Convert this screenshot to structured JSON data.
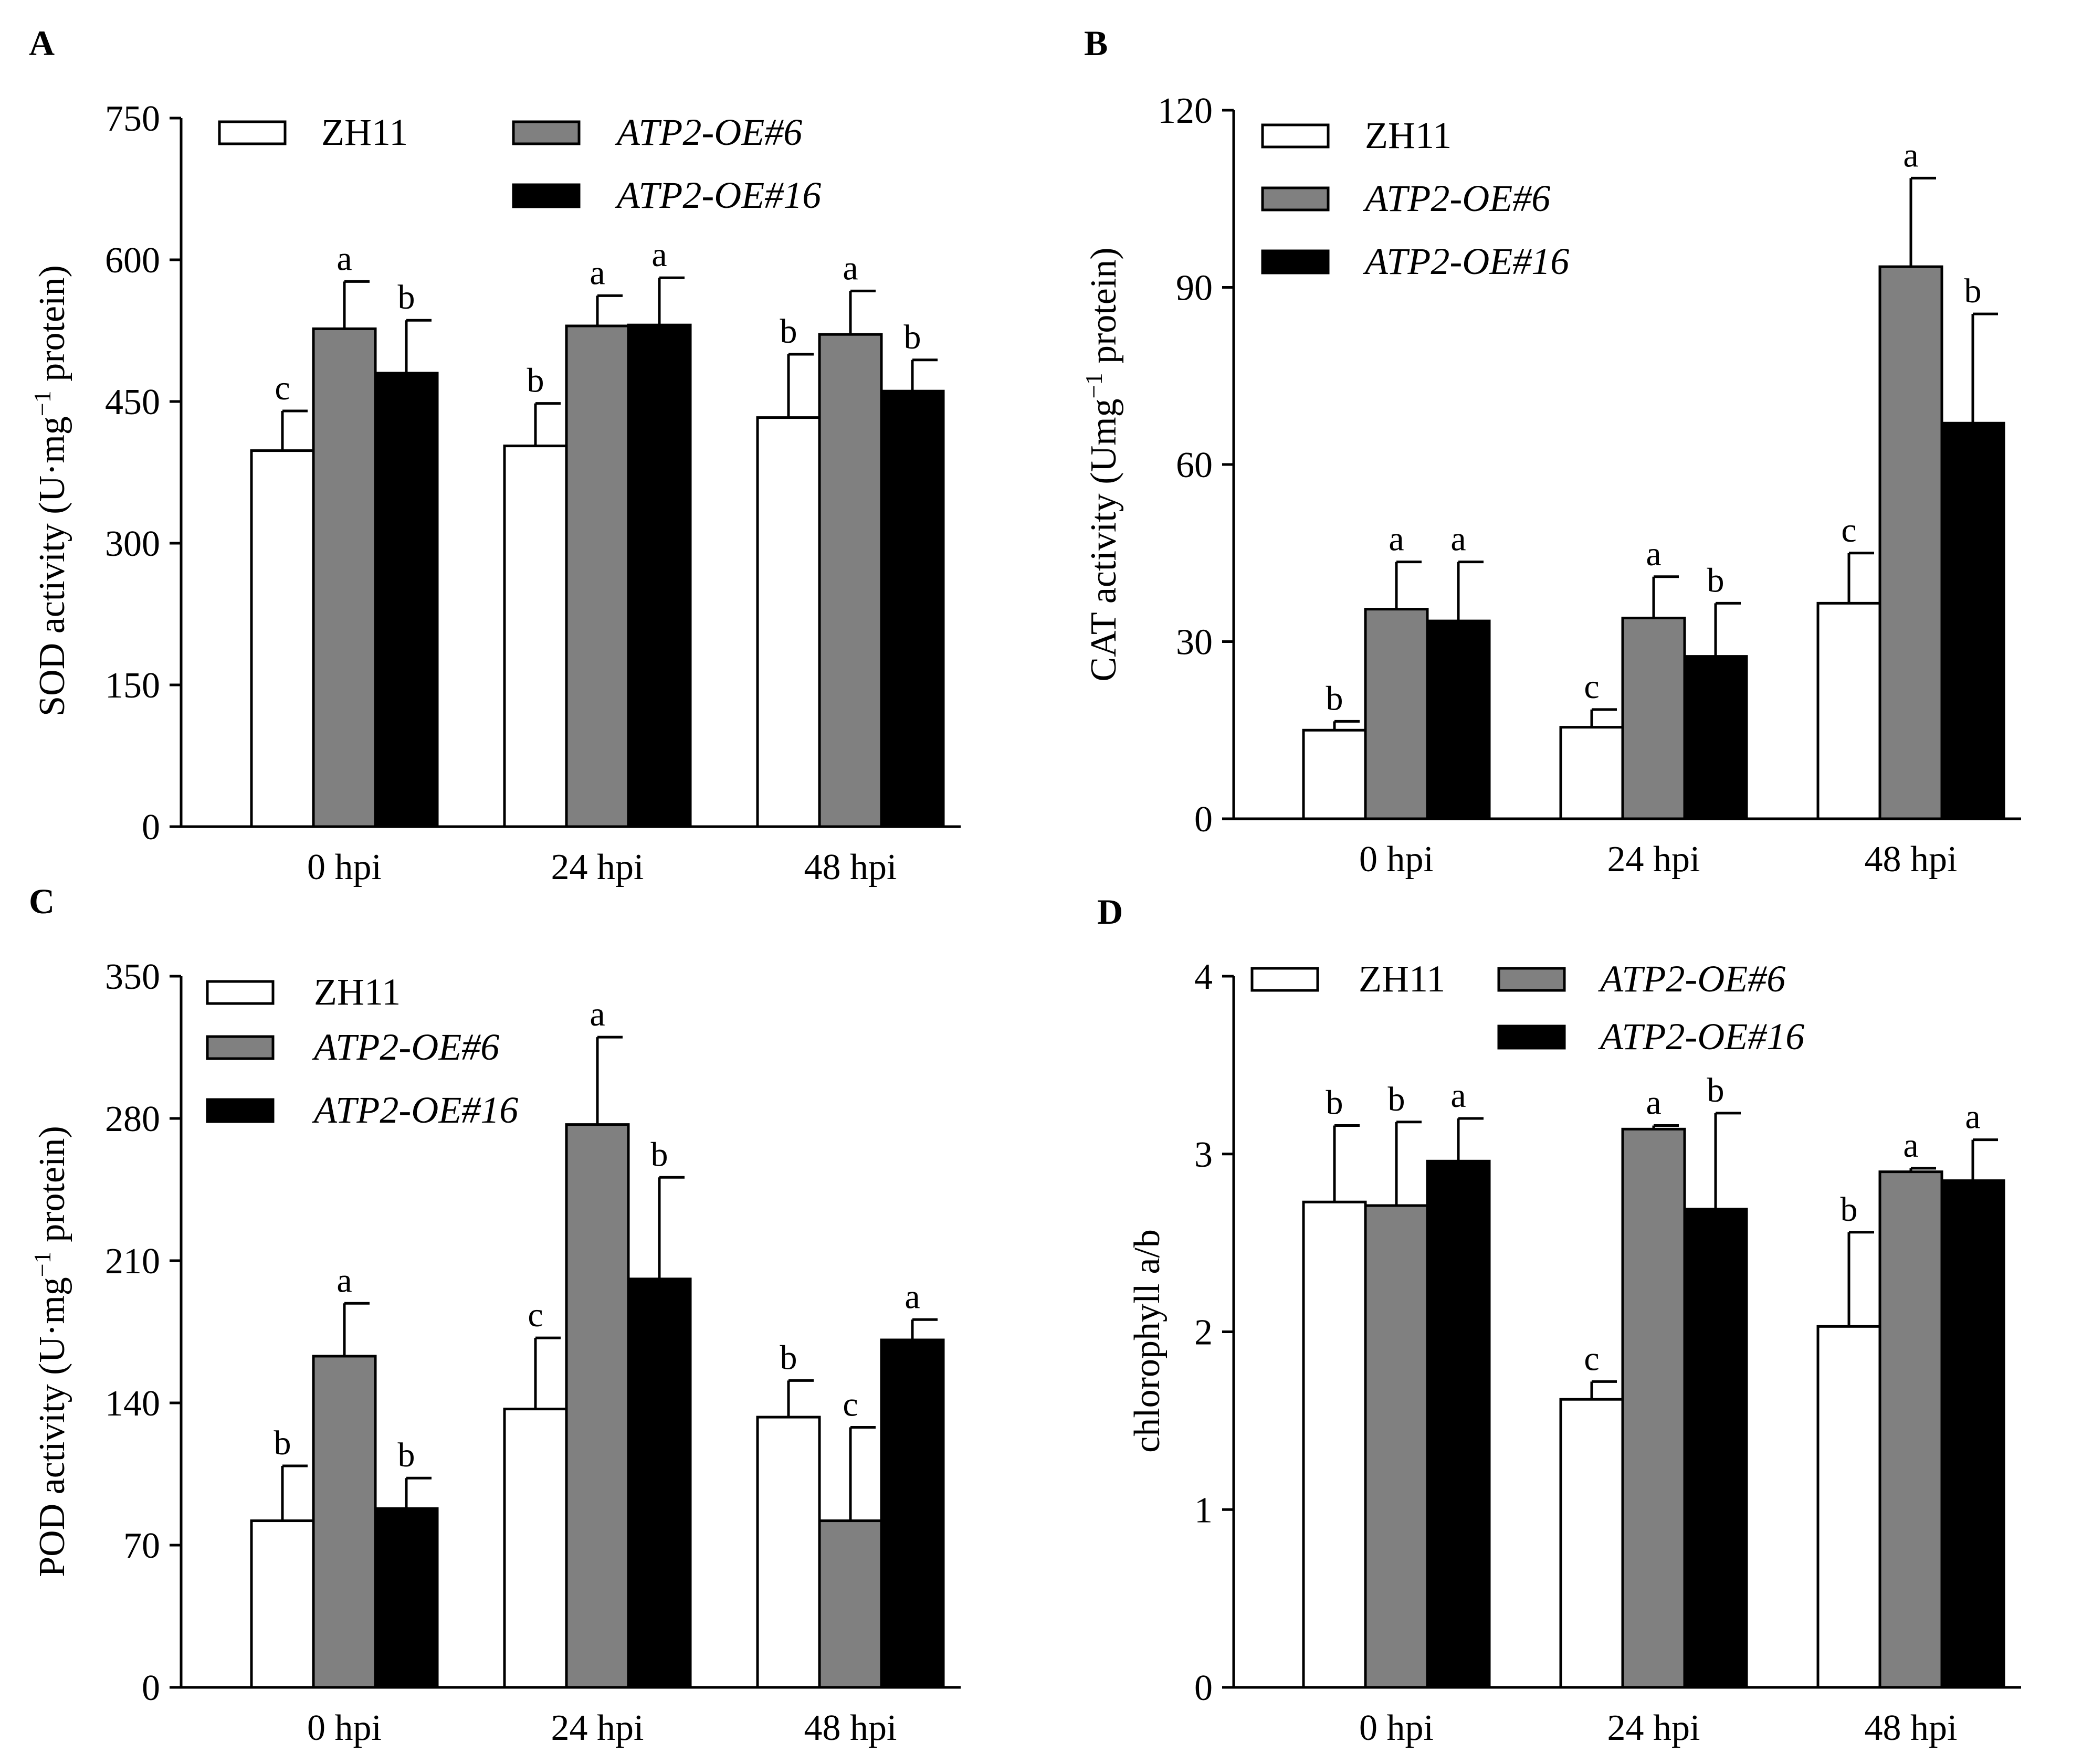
{
  "figure": {
    "panel_labels": [
      "A",
      "B",
      "C",
      "D"
    ]
  },
  "legend": {
    "zh11": "ZH11",
    "oe6": "ATP2-OE#6",
    "oe16": "ATP2-OE#16"
  },
  "colors": {
    "zh11": "#ffffff",
    "oe6": "#808080",
    "oe16": "#000000",
    "stroke": "#000000"
  },
  "chart_data": [
    {
      "panel": "A",
      "type": "bar",
      "ylabel": "SOD activity (U·mg⁻¹ protein)",
      "ylabel_main": "SOD activity (U·mg",
      "ylabel_sup": "−1",
      "ylabel_end": " protein)",
      "categories": [
        "0 hpi",
        "24 hpi",
        "48 hpi"
      ],
      "ylim": [
        0,
        750
      ],
      "yticks": [
        0,
        150,
        300,
        450,
        600,
        750
      ],
      "series": [
        {
          "name": "ZH11",
          "values": [
            398,
            403,
            433
          ],
          "errors": [
            42,
            45,
            67
          ],
          "letters": [
            "c",
            "b",
            "b"
          ]
        },
        {
          "name": "ATP2-OE#6",
          "values": [
            527,
            530,
            521
          ],
          "errors": [
            50,
            32,
            46
          ],
          "letters": [
            "a",
            "a",
            "a"
          ]
        },
        {
          "name": "ATP2-OE#16",
          "values": [
            480,
            531,
            461
          ],
          "errors": [
            56,
            50,
            33
          ],
          "letters": [
            "b",
            "a",
            "b"
          ]
        }
      ]
    },
    {
      "panel": "B",
      "type": "bar",
      "ylabel": "CAT activity (Umg⁻¹ protein)",
      "ylabel_main": "CAT activity (Umg",
      "ylabel_sup": "−1",
      "ylabel_end": " protein)",
      "categories": [
        "0 hpi",
        "24 hpi",
        "48 hpi"
      ],
      "ylim": [
        0,
        120
      ],
      "yticks": [
        0,
        30,
        60,
        90,
        120
      ],
      "series": [
        {
          "name": "ZH11",
          "values": [
            15,
            15.5,
            36.5
          ],
          "errors": [
            1.5,
            3,
            8.5
          ],
          "letters": [
            "b",
            "c",
            "c"
          ]
        },
        {
          "name": "ATP2-OE#6",
          "values": [
            35.5,
            34,
            93.5
          ],
          "errors": [
            8,
            7,
            15
          ],
          "letters": [
            "a",
            "a",
            "a"
          ]
        },
        {
          "name": "ATP2-OE#16",
          "values": [
            33.5,
            27.5,
            67
          ],
          "errors": [
            10,
            9,
            18.5
          ],
          "letters": [
            "a",
            "b",
            "b"
          ]
        }
      ]
    },
    {
      "panel": "C",
      "type": "bar",
      "ylabel": "POD activity (U·mg⁻¹ protein)",
      "ylabel_main": "POD activity (U·mg",
      "ylabel_sup": "−1",
      "ylabel_end": " protein)",
      "categories": [
        "0 hpi",
        "24 hpi",
        "48 hpi"
      ],
      "ylim": [
        0,
        350
      ],
      "yticks": [
        0,
        70,
        140,
        210,
        280,
        350
      ],
      "series": [
        {
          "name": "ZH11",
          "values": [
            82,
            137,
            133
          ],
          "errors": [
            27,
            35,
            18
          ],
          "letters": [
            "b",
            "c",
            "b"
          ]
        },
        {
          "name": "ATP2-OE#6",
          "values": [
            163,
            277,
            82
          ],
          "errors": [
            26,
            43,
            46
          ],
          "letters": [
            "a",
            "a",
            "c"
          ]
        },
        {
          "name": "ATP2-OE#16",
          "values": [
            88,
            201,
            171
          ],
          "errors": [
            15,
            50,
            10
          ],
          "letters": [
            "b",
            "b",
            "a"
          ]
        }
      ]
    },
    {
      "panel": "D",
      "type": "bar",
      "ylabel": "chlorophyll a/b",
      "ylabel_main": "chlorophyll a/b",
      "ylabel_sup": "",
      "ylabel_end": "",
      "categories": [
        "0 hpi",
        "24 hpi",
        "48 hpi"
      ],
      "ylim": [
        0,
        4
      ],
      "yticks": [
        0,
        1,
        2,
        3,
        4
      ],
      "series": [
        {
          "name": "ZH11",
          "values": [
            2.73,
            1.62,
            2.03
          ],
          "errors": [
            0.43,
            0.1,
            0.53
          ],
          "letters": [
            "b",
            "c",
            "b"
          ]
        },
        {
          "name": "ATP2-OE#6",
          "values": [
            2.71,
            3.14,
            2.9
          ],
          "errors": [
            0.47,
            0.02,
            0.02
          ],
          "letters": [
            "b",
            "a",
            "a"
          ]
        },
        {
          "name": "ATP2-OE#16",
          "values": [
            2.96,
            2.69,
            2.85
          ],
          "errors": [
            0.24,
            0.54,
            0.23
          ],
          "letters": [
            "a",
            "b",
            "a"
          ]
        }
      ]
    }
  ]
}
